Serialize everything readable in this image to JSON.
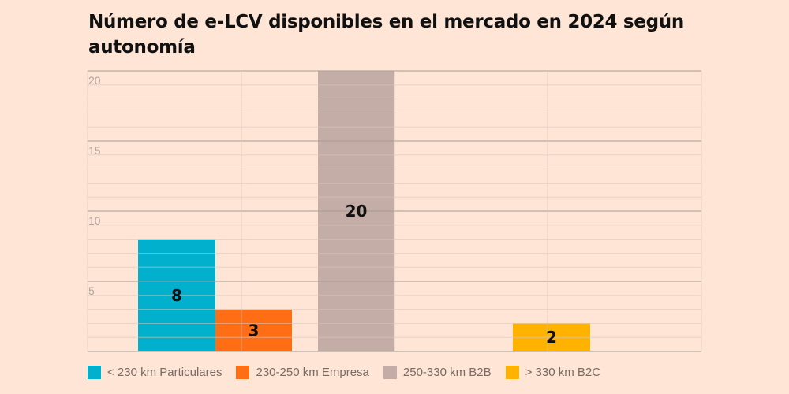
{
  "chart_data": {
    "type": "bar",
    "title": "Número de e-LCV disponibles en el mercado en 2024 según autonomía",
    "xlabel": "",
    "ylabel": "",
    "ylim": [
      0,
      20
    ],
    "yticks": [
      "5",
      "10",
      "15",
      "20"
    ],
    "grid": true,
    "legend_position": "bottom-left",
    "series": [
      {
        "name": "< 230 km Particulares",
        "values": [
          8
        ],
        "color": "#00b0cd"
      },
      {
        "name": "230-250 km Empresa",
        "values": [
          3
        ],
        "color": "#ff6e14"
      },
      {
        "name": "250-330 km B2B",
        "values": [
          20
        ],
        "color": "#c4ada6"
      },
      {
        "name": "> 330 km B2C",
        "values": [
          2
        ],
        "color": "#ffb300"
      }
    ],
    "data_labels": [
      "8",
      "3",
      "20",
      "2"
    ]
  }
}
